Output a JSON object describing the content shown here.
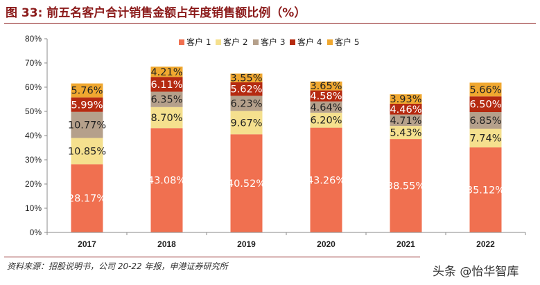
{
  "header": {
    "title": "图 33:  前五名客户合计销售金额占年度销售额比例（%）"
  },
  "footer": {
    "source": "资料来源：招股说明书，公司 20-22 年报，申港证券研究所",
    "watermark": "头条 @怡华智库"
  },
  "colors": {
    "c1": "#f07050",
    "c2": "#f5e08e",
    "c3": "#b5a08b",
    "c4": "#b52a10",
    "c5": "#f0a830",
    "axis": "#888888"
  },
  "chart_data": {
    "type": "bar",
    "stacked": true,
    "categories": [
      "2017",
      "2018",
      "2019",
      "2020",
      "2021",
      "2022"
    ],
    "series": [
      {
        "name": "客户1",
        "values": [
          28.17,
          43.08,
          40.52,
          43.26,
          38.55,
          35.12
        ],
        "labels": [
          "28.17%",
          "43.08%",
          "40.52%",
          "43.26%",
          "38.55%",
          "35.12%"
        ]
      },
      {
        "name": "客户2",
        "values": [
          10.85,
          8.7,
          9.67,
          6.2,
          5.43,
          7.74
        ],
        "labels": [
          "10.85%",
          "8.70%",
          "9.67%",
          "6.20%",
          "5.43%",
          "7.74%"
        ]
      },
      {
        "name": "客户3",
        "values": [
          10.77,
          6.35,
          6.23,
          4.64,
          4.71,
          6.85
        ],
        "labels": [
          "10.77%",
          "6.35%",
          "6.23%",
          "4.64%",
          "4.71%",
          "6.85%"
        ]
      },
      {
        "name": "客户4",
        "values": [
          5.99,
          6.11,
          5.62,
          4.58,
          4.46,
          6.5
        ],
        "labels": [
          "5.99%",
          "6.11%",
          "5.62%",
          "4.58%",
          "4.46%",
          "6.50%"
        ]
      },
      {
        "name": "客户5",
        "values": [
          5.76,
          4.21,
          3.55,
          3.65,
          3.93,
          5.66
        ],
        "labels": [
          "5.76%",
          "4.21%",
          "3.55%",
          "3.65%",
          "3.93%",
          "5.66%"
        ]
      }
    ],
    "legend_labels": [
      "客户 1",
      "客户 2",
      "客户 3",
      "客户 4",
      "客户 5"
    ],
    "ylim": [
      0,
      80
    ],
    "yticks": [
      0,
      10,
      20,
      30,
      40,
      50,
      60,
      70,
      80
    ],
    "ytick_labels": [
      "0%",
      "10%",
      "20%",
      "30%",
      "40%",
      "50%",
      "60%",
      "70%",
      "80%"
    ],
    "legend_position": "top-right",
    "grid": false
  }
}
